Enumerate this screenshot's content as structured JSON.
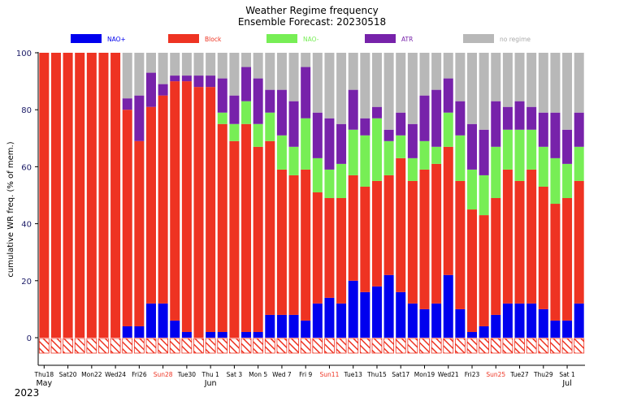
{
  "chart_data": {
    "type": "bar",
    "stacked": true,
    "title": "Weather Regime frequency",
    "subtitle": "Ensemble Forecast: 20230518",
    "ylabel": "cumulative WR freq. (% of mem.)",
    "ylim": [
      0,
      100
    ],
    "yticks": [
      0,
      20,
      40,
      60,
      80,
      100
    ],
    "grid": false,
    "legend_position": "top",
    "colors": {
      "NAO+": "#0000ee",
      "Block": "#ee3322",
      "NAO-": "#77ee55",
      "ATR": "#7722aa",
      "no regime": "#b8b8b8",
      "hatch": "#ee3322",
      "tick_weekday": "#000000",
      "tick_sunday": "#ee3322"
    },
    "legend": [
      {
        "label": "NAO+",
        "color": "#0000ee",
        "text_color": "#0000ee"
      },
      {
        "label": "Block",
        "color": "#ee3322",
        "text_color": "#ee3322"
      },
      {
        "label": "NAO-",
        "color": "#77ee55",
        "text_color": "#77ee55"
      },
      {
        "label": "ATR",
        "color": "#7722aa",
        "text_color": "#7722aa"
      },
      {
        "label": "no regime",
        "color": "#b8b8b8",
        "text_color": "#aaaaaa"
      }
    ],
    "x_tick_labels": [
      {
        "index": 0,
        "label": "Thu18",
        "sunday": false
      },
      {
        "index": 2,
        "label": "Sat20",
        "sunday": false
      },
      {
        "index": 4,
        "label": "Mon22",
        "sunday": false
      },
      {
        "index": 6,
        "label": "Wed24",
        "sunday": false
      },
      {
        "index": 8,
        "label": "Fri26",
        "sunday": false
      },
      {
        "index": 10,
        "label": "Sun28",
        "sunday": true
      },
      {
        "index": 12,
        "label": "Tue30",
        "sunday": false
      },
      {
        "index": 14,
        "label": "Thu 1",
        "sunday": false
      },
      {
        "index": 16,
        "label": "Sat 3",
        "sunday": false
      },
      {
        "index": 18,
        "label": "Mon 5",
        "sunday": false
      },
      {
        "index": 20,
        "label": "Wed 7",
        "sunday": false
      },
      {
        "index": 22,
        "label": "Fri 9",
        "sunday": false
      },
      {
        "index": 24,
        "label": "Sun11",
        "sunday": true
      },
      {
        "index": 26,
        "label": "Tue13",
        "sunday": false
      },
      {
        "index": 28,
        "label": "Thu15",
        "sunday": false
      },
      {
        "index": 30,
        "label": "Sat17",
        "sunday": false
      },
      {
        "index": 32,
        "label": "Mon19",
        "sunday": false
      },
      {
        "index": 34,
        "label": "Wed21",
        "sunday": false
      },
      {
        "index": 36,
        "label": "Fri23",
        "sunday": false
      },
      {
        "index": 38,
        "label": "Sun25",
        "sunday": true
      },
      {
        "index": 40,
        "label": "Tue27",
        "sunday": false
      },
      {
        "index": 42,
        "label": "Thu29",
        "sunday": false
      },
      {
        "index": 44,
        "label": "Sat 1",
        "sunday": false
      }
    ],
    "month_labels": [
      {
        "index": 0,
        "label": "May"
      },
      {
        "index": 14,
        "label": "Jun"
      },
      {
        "index": 44,
        "label": "Jul"
      }
    ],
    "year_label": "2023",
    "x": [
      "2023-05-18",
      "2023-05-19",
      "2023-05-20",
      "2023-05-21",
      "2023-05-22",
      "2023-05-23",
      "2023-05-24",
      "2023-05-25",
      "2023-05-26",
      "2023-05-27",
      "2023-05-28",
      "2023-05-29",
      "2023-05-30",
      "2023-05-31",
      "2023-06-01",
      "2023-06-02",
      "2023-06-03",
      "2023-06-04",
      "2023-06-05",
      "2023-06-06",
      "2023-06-07",
      "2023-06-08",
      "2023-06-09",
      "2023-06-10",
      "2023-06-11",
      "2023-06-12",
      "2023-06-13",
      "2023-06-14",
      "2023-06-15",
      "2023-06-16",
      "2023-06-17",
      "2023-06-18",
      "2023-06-19",
      "2023-06-20",
      "2023-06-21",
      "2023-06-22",
      "2023-06-23",
      "2023-06-24",
      "2023-06-25",
      "2023-06-26",
      "2023-06-27",
      "2023-06-28",
      "2023-06-29",
      "2023-06-30",
      "2023-07-01",
      "2023-07-02"
    ],
    "series": [
      {
        "name": "NAO+",
        "values": [
          0,
          0,
          0,
          0,
          0,
          0,
          0,
          4,
          4,
          12,
          12,
          6,
          2,
          0,
          2,
          2,
          0,
          2,
          2,
          8,
          8,
          8,
          6,
          12,
          14,
          12,
          20,
          16,
          18,
          22,
          16,
          12,
          10,
          12,
          22,
          10,
          2,
          4,
          8,
          12,
          12,
          12,
          10,
          6,
          6,
          12
        ]
      },
      {
        "name": "Block",
        "values": [
          100,
          100,
          100,
          100,
          100,
          100,
          100,
          76,
          65,
          69,
          73,
          84,
          88,
          88,
          86,
          73,
          69,
          73,
          65,
          61,
          51,
          49,
          53,
          39,
          35,
          37,
          37,
          37,
          37,
          35,
          47,
          43,
          49,
          49,
          45,
          45,
          43,
          39,
          41,
          47,
          43,
          47,
          43,
          41,
          43,
          43
        ]
      },
      {
        "name": "NAO-",
        "values": [
          0,
          0,
          0,
          0,
          0,
          0,
          0,
          0,
          0,
          0,
          0,
          0,
          0,
          0,
          0,
          4,
          6,
          8,
          8,
          10,
          12,
          10,
          18,
          12,
          10,
          12,
          16,
          18,
          22,
          12,
          8,
          8,
          10,
          6,
          12,
          16,
          14,
          14,
          18,
          14,
          18,
          14,
          14,
          16,
          12,
          12
        ]
      },
      {
        "name": "ATR",
        "values": [
          0,
          0,
          0,
          0,
          0,
          0,
          0,
          4,
          16,
          12,
          4,
          2,
          2,
          4,
          4,
          12,
          10,
          12,
          16,
          8,
          16,
          16,
          18,
          16,
          18,
          14,
          14,
          6,
          4,
          4,
          8,
          12,
          16,
          20,
          12,
          12,
          16,
          16,
          16,
          8,
          10,
          8,
          12,
          16,
          12,
          12
        ]
      },
      {
        "name": "no regime",
        "values": [
          0,
          0,
          0,
          0,
          0,
          0,
          0,
          16,
          15,
          7,
          11,
          8,
          8,
          8,
          8,
          9,
          15,
          5,
          9,
          13,
          13,
          17,
          5,
          21,
          23,
          25,
          13,
          23,
          19,
          27,
          21,
          25,
          15,
          13,
          9,
          17,
          25,
          27,
          17,
          19,
          17,
          19,
          21,
          21,
          27,
          21
        ]
      }
    ]
  }
}
